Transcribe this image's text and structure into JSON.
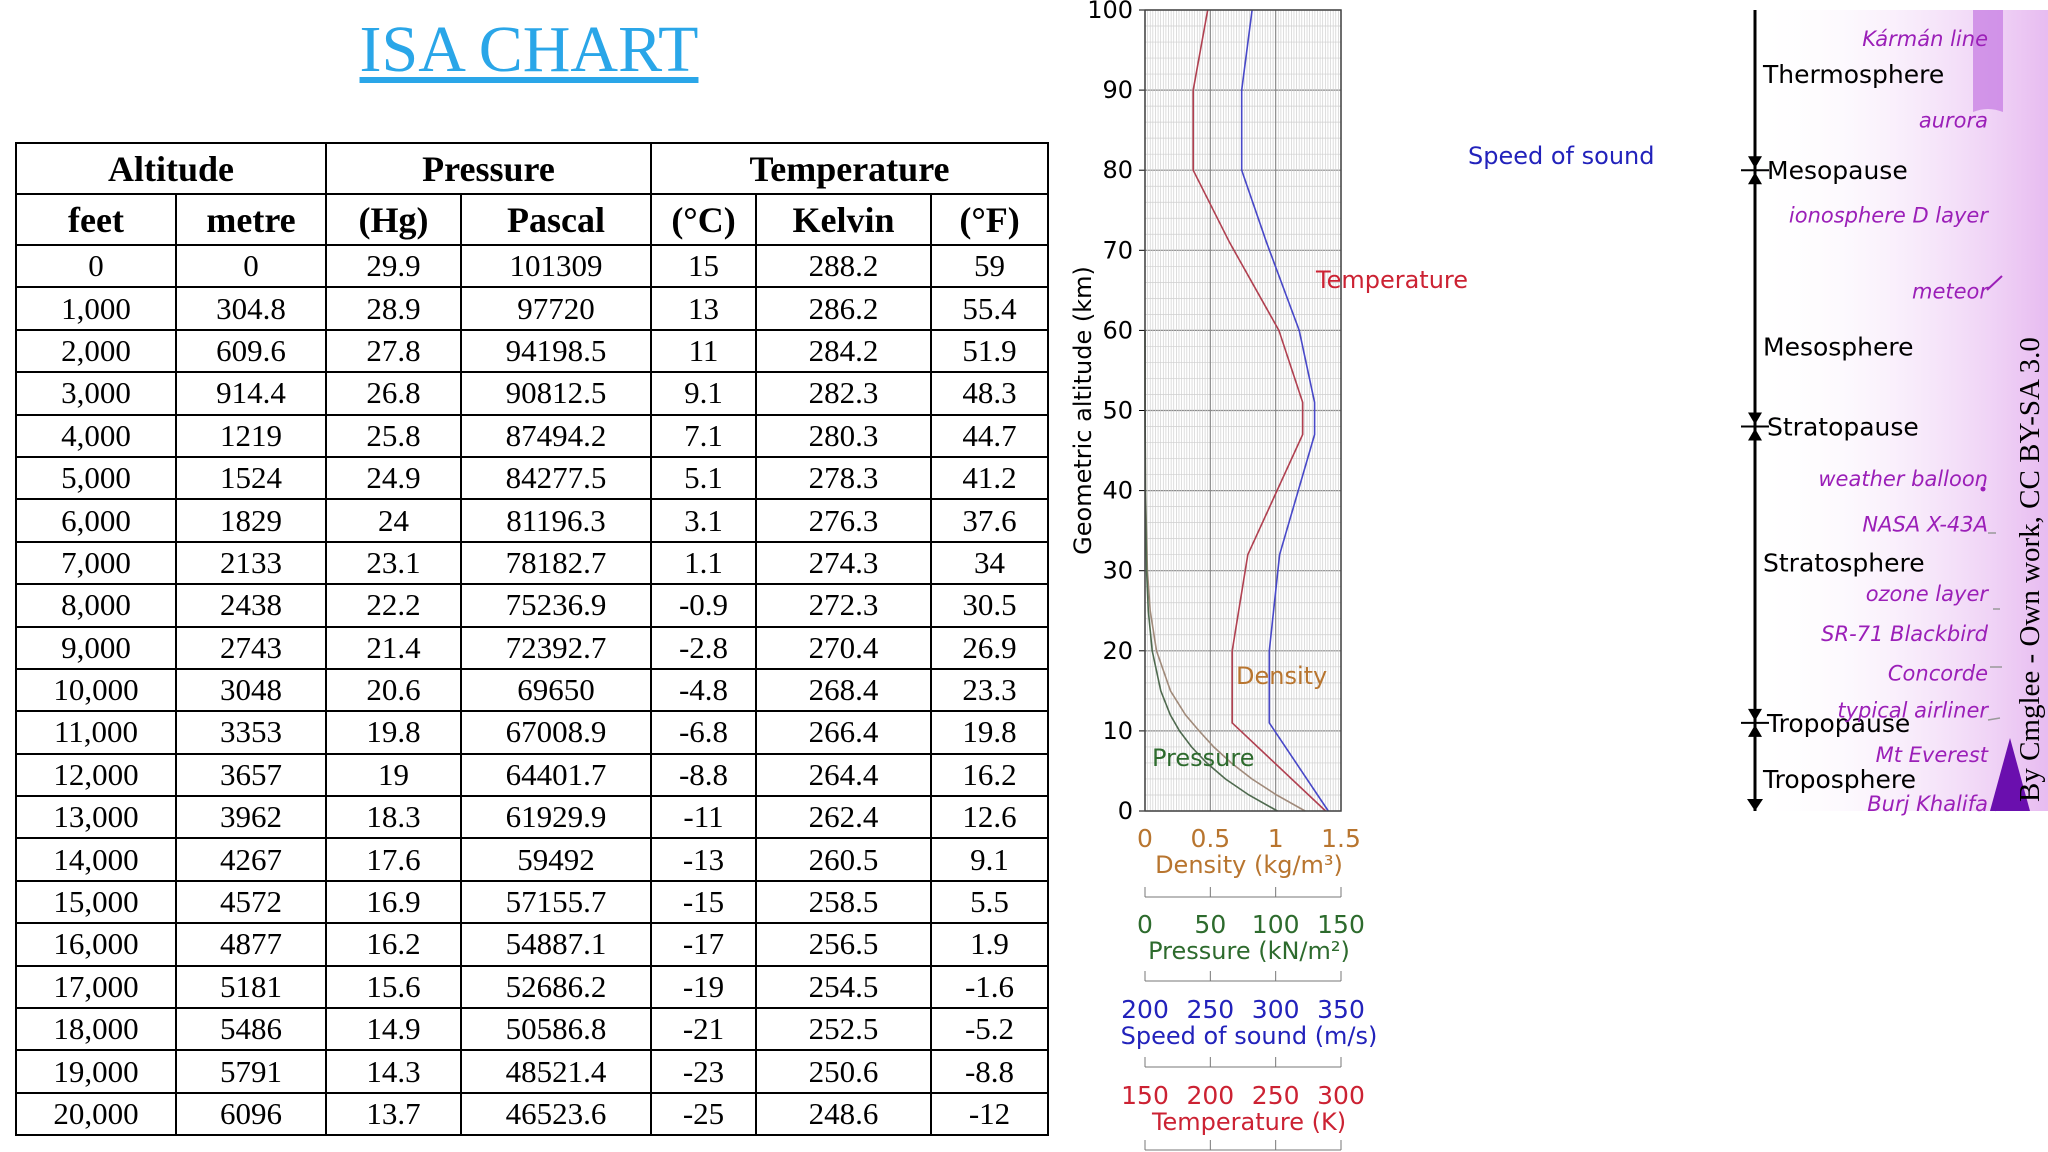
{
  "title": "ISA CHART",
  "table": {
    "group_headers": [
      "Altitude",
      "Pressure",
      "Temperature"
    ],
    "columns": [
      "feet",
      "metre",
      "(Hg)",
      "Pascal",
      "(°C)",
      "Kelvin",
      "(°F)"
    ],
    "rows": [
      [
        "0",
        "0",
        "29.9",
        "101309",
        "15",
        "288.2",
        "59"
      ],
      [
        "1,000",
        "304.8",
        "28.9",
        "97720",
        "13",
        "286.2",
        "55.4"
      ],
      [
        "2,000",
        "609.6",
        "27.8",
        "94198.5",
        "11",
        "284.2",
        "51.9"
      ],
      [
        "3,000",
        "914.4",
        "26.8",
        "90812.5",
        "9.1",
        "282.3",
        "48.3"
      ],
      [
        "4,000",
        "1219",
        "25.8",
        "87494.2",
        "7.1",
        "280.3",
        "44.7"
      ],
      [
        "5,000",
        "1524",
        "24.9",
        "84277.5",
        "5.1",
        "278.3",
        "41.2"
      ],
      [
        "6,000",
        "1829",
        "24",
        "81196.3",
        "3.1",
        "276.3",
        "37.6"
      ],
      [
        "7,000",
        "2133",
        "23.1",
        "78182.7",
        "1.1",
        "274.3",
        "34"
      ],
      [
        "8,000",
        "2438",
        "22.2",
        "75236.9",
        "-0.9",
        "272.3",
        "30.5"
      ],
      [
        "9,000",
        "2743",
        "21.4",
        "72392.7",
        "-2.8",
        "270.4",
        "26.9"
      ],
      [
        "10,000",
        "3048",
        "20.6",
        "69650",
        "-4.8",
        "268.4",
        "23.3"
      ],
      [
        "11,000",
        "3353",
        "19.8",
        "67008.9",
        "-6.8",
        "266.4",
        "19.8"
      ],
      [
        "12,000",
        "3657",
        "19",
        "64401.7",
        "-8.8",
        "264.4",
        "16.2"
      ],
      [
        "13,000",
        "3962",
        "18.3",
        "61929.9",
        "-11",
        "262.4",
        "12.6"
      ],
      [
        "14,000",
        "4267",
        "17.6",
        "59492",
        "-13",
        "260.5",
        "9.1"
      ],
      [
        "15,000",
        "4572",
        "16.9",
        "57155.7",
        "-15",
        "258.5",
        "5.5"
      ],
      [
        "16,000",
        "4877",
        "16.2",
        "54887.1",
        "-17",
        "256.5",
        "1.9"
      ],
      [
        "17,000",
        "5181",
        "15.6",
        "52686.2",
        "-19",
        "254.5",
        "-1.6"
      ],
      [
        "18,000",
        "5486",
        "14.9",
        "50586.8",
        "-21",
        "252.5",
        "-5.2"
      ],
      [
        "19,000",
        "5791",
        "14.3",
        "48521.4",
        "-23",
        "250.6",
        "-8.8"
      ],
      [
        "20,000",
        "6096",
        "13.7",
        "46523.6",
        "-25",
        "248.6",
        "-12"
      ]
    ]
  },
  "chart_data": {
    "type": "line",
    "ylabel": "Geometric altitude (km)",
    "ylim": [
      0,
      100
    ],
    "yticks": [
      0,
      10,
      20,
      30,
      40,
      50,
      60,
      70,
      80,
      90,
      100
    ],
    "grid": true,
    "axes": [
      {
        "key": "density",
        "label": "Density (kg/m³)",
        "min": 0,
        "max": 1.5,
        "ticks": [
          "0",
          "0.5",
          "1",
          "1.5"
        ],
        "color": "#b8752f"
      },
      {
        "key": "pressure",
        "label": "Pressure (kN/m²)",
        "min": 0,
        "max": 150,
        "ticks": [
          "0",
          "50",
          "100",
          "150"
        ],
        "color": "#2d6b2d"
      },
      {
        "key": "speed",
        "label": "Speed of sound (m/s)",
        "min": 200,
        "max": 350,
        "ticks": [
          "200",
          "250",
          "300",
          "350"
        ],
        "color": "#2222bb"
      },
      {
        "key": "temperature",
        "label": "Temperature (K)",
        "min": 150,
        "max": 300,
        "ticks": [
          "150",
          "200",
          "250",
          "300"
        ],
        "color": "#cc2233"
      }
    ],
    "series": [
      {
        "name": "Temperature",
        "axis": "temperature",
        "color": "#b04050",
        "points": [
          [
            288.2,
            0
          ],
          [
            216.7,
            11
          ],
          [
            216.7,
            20
          ],
          [
            228.7,
            32
          ],
          [
            270.7,
            47
          ],
          [
            270.7,
            51
          ],
          [
            252.5,
            60
          ],
          [
            214.7,
            71
          ],
          [
            186.9,
            80
          ],
          [
            186.9,
            90
          ],
          [
            198,
            100
          ]
        ]
      },
      {
        "name": "Speed of sound",
        "axis": "speed",
        "color": "#4848c8",
        "points": [
          [
            340.3,
            0
          ],
          [
            295.1,
            11
          ],
          [
            295.1,
            20
          ],
          [
            303,
            32
          ],
          [
            329.8,
            47
          ],
          [
            329.8,
            51
          ],
          [
            318,
            60
          ],
          [
            293,
            71
          ],
          [
            274,
            80
          ],
          [
            274,
            90
          ],
          [
            282,
            100
          ]
        ]
      },
      {
        "name": "Density",
        "axis": "density",
        "color": "#a08a7a",
        "points": [
          [
            1.225,
            0
          ],
          [
            1.007,
            2
          ],
          [
            0.819,
            4
          ],
          [
            0.66,
            6
          ],
          [
            0.526,
            8
          ],
          [
            0.414,
            10
          ],
          [
            0.31,
            12
          ],
          [
            0.195,
            15
          ],
          [
            0.088,
            20
          ],
          [
            0.04,
            25
          ],
          [
            0.018,
            30
          ],
          [
            0.004,
            40
          ],
          [
            0.001,
            50
          ],
          [
            0,
            60
          ]
        ]
      },
      {
        "name": "Pressure",
        "axis": "pressure",
        "color": "#4f6a4f",
        "points": [
          [
            101.3,
            0
          ],
          [
            79.5,
            2
          ],
          [
            61.6,
            4
          ],
          [
            47.2,
            6
          ],
          [
            35.6,
            8
          ],
          [
            26.4,
            10
          ],
          [
            19.4,
            12
          ],
          [
            12.1,
            15
          ],
          [
            5.5,
            20
          ],
          [
            2.5,
            25
          ],
          [
            1.2,
            30
          ],
          [
            0.29,
            40
          ],
          [
            0.08,
            50
          ],
          [
            0,
            60
          ]
        ]
      }
    ],
    "layers": [
      {
        "label": "Thermosphere",
        "altitude_km": 92
      },
      {
        "label": "Mesosphere",
        "altitude_km": 58
      },
      {
        "label": "Stratosphere",
        "altitude_km": 31
      },
      {
        "label": "Troposphere",
        "altitude_km": 4
      }
    ],
    "boundaries": [
      {
        "label": "Mesopause",
        "altitude_km": 80
      },
      {
        "label": "Stratopause",
        "altitude_km": 48
      },
      {
        "label": "Tropopause",
        "altitude_km": 11
      }
    ],
    "annotations": [
      {
        "label": "Kármán line",
        "altitude_km": 96.5
      },
      {
        "label": "aurora",
        "altitude_km": 86.3
      },
      {
        "label": "ionosphere D layer",
        "altitude_km": 74.5
      },
      {
        "label": "meteor",
        "altitude_km": 65
      },
      {
        "label": "weather balloon",
        "altitude_km": 41.6
      },
      {
        "label": "NASA X-43A",
        "altitude_km": 35.9
      },
      {
        "label": "ozone layer",
        "altitude_km": 27.2
      },
      {
        "label": "SR-71 Blackbird",
        "altitude_km": 22.2
      },
      {
        "label": "Concorde",
        "altitude_km": 17.3
      },
      {
        "label": "typical airliner",
        "altitude_km": 12.7
      },
      {
        "label": "Mt Everest",
        "altitude_km": 7.1
      },
      {
        "label": "Burj Khalifa",
        "altitude_km": 1
      }
    ],
    "curve_labels": [
      {
        "series": "Temperature",
        "text": "Temperature"
      },
      {
        "series": "Speed of sound",
        "text": "Speed of sound"
      },
      {
        "series": "Density",
        "text": "Density"
      },
      {
        "series": "Pressure",
        "text": "Pressure"
      }
    ]
  },
  "credit": "By Cmglee - Own work, CC BY-SA 3.0",
  "colors": {
    "title": "#2aa6e8",
    "annotation": "#9b1fb8",
    "band": "#e6b8f0"
  }
}
